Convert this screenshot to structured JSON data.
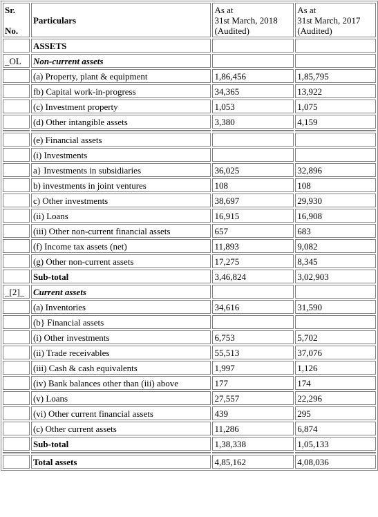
{
  "header": {
    "sr_line1": "Sr.",
    "sr_line2": "No.",
    "particulars": "Particulars",
    "col2018": [
      "As at",
      "31st March, 2018",
      "(Audited)"
    ],
    "col2017": [
      "As at",
      "31st March, 2017",
      "(Audited)"
    ]
  },
  "rows": [
    {
      "sr": "",
      "label": "ASSETS",
      "v2018": "",
      "v2017": "",
      "style": "b"
    },
    {
      "sr": "_OL",
      "label": "Non-current assets",
      "v2018": "",
      "v2017": "",
      "style": "bi"
    },
    {
      "sr": "",
      "label": "(a) Property, plant & equipment",
      "v2018": "1,86,456",
      "v2017": "1,85,795",
      "style": ""
    },
    {
      "sr": "",
      "label": "fb) Capital work-in-progress",
      "v2018": "34,365",
      "v2017": "13,922",
      "style": ""
    },
    {
      "sr": "",
      "label": "(c) Investment property",
      "v2018": "1,053",
      "v2017": "1,075",
      "style": ""
    },
    {
      "sr": "",
      "label": "(d) Other intangible assets",
      "v2018": "3,380",
      "v2017": "4,159",
      "style": ""
    },
    {
      "spacer": true
    },
    {
      "sr": "",
      "label": "(e) Financial assets",
      "v2018": "",
      "v2017": "",
      "style": ""
    },
    {
      "sr": "",
      "label": "(i) Investments",
      "v2018": "",
      "v2017": "",
      "style": ""
    },
    {
      "sr": "",
      "label": "a} Investments in subsidiaries",
      "v2018": "36,025",
      "v2017": "32,896",
      "style": ""
    },
    {
      "sr": "",
      "label": "b) investments in joint ventures",
      "v2018": "108",
      "v2017": "108",
      "style": ""
    },
    {
      "sr": "",
      "label": "c) Other investments",
      "v2018": "38,697",
      "v2017": "29,930",
      "style": ""
    },
    {
      "sr": "",
      "label": "(ii) Loans",
      "v2018": "16,915",
      "v2017": "16,908",
      "style": ""
    },
    {
      "sr": "",
      "label": "(iii) Other non-current financial assets",
      "v2018": "657",
      "v2017": "683",
      "style": ""
    },
    {
      "sr": "",
      "label": "(f) Income tax assets (net)",
      "v2018": "11,893",
      "v2017": "9,082",
      "style": ""
    },
    {
      "sr": "",
      "label": "(g) Other non-current assets",
      "v2018": "17,275",
      "v2017": "8,345",
      "style": ""
    },
    {
      "sr": "",
      "label": "Sub-total",
      "v2018": "3,46,824",
      "v2017": "3,02,903",
      "style": "b"
    },
    {
      "sr": "_[2]_",
      "label": "Current assets",
      "v2018": "",
      "v2017": "",
      "style": "bi"
    },
    {
      "sr": "",
      "label": "(a) Inventories",
      "v2018": "34,616",
      "v2017": "31,590",
      "style": ""
    },
    {
      "sr": "",
      "label": "(b} Financial assets",
      "v2018": "",
      "v2017": "",
      "style": ""
    },
    {
      "sr": "",
      "label": "(i) Other investments",
      "v2018": "6,753",
      "v2017": "5,702",
      "style": ""
    },
    {
      "sr": "",
      "label": "(ii) Trade receivables",
      "v2018": "55,513",
      "v2017": "37,076",
      "style": ""
    },
    {
      "sr": "",
      "label": "(iii) Cash & cash equivalents",
      "v2018": "1,997",
      "v2017": "1,126",
      "style": ""
    },
    {
      "sr": "",
      "label": "(iv) Bank balances other than (iii) above",
      "v2018": "177",
      "v2017": "174",
      "style": ""
    },
    {
      "sr": "",
      "label": "(v) Loans",
      "v2018": "27,557",
      "v2017": "22,296",
      "style": ""
    },
    {
      "sr": "",
      "label": "(vi) Other current financial assets",
      "v2018": "439",
      "v2017": "295",
      "style": ""
    },
    {
      "sr": "",
      "label": "(c) Other current assets",
      "v2018": "11,286",
      "v2017": "6,874",
      "style": ""
    },
    {
      "sr": "",
      "label": "Sub-total",
      "v2018": "1,38,338",
      "v2017": "1,05,133",
      "style": "b"
    },
    {
      "spacer": true
    },
    {
      "sr": "",
      "label": "Total assets",
      "v2018": "4,85,162",
      "v2017": "4,08,036",
      "style": "b"
    }
  ]
}
